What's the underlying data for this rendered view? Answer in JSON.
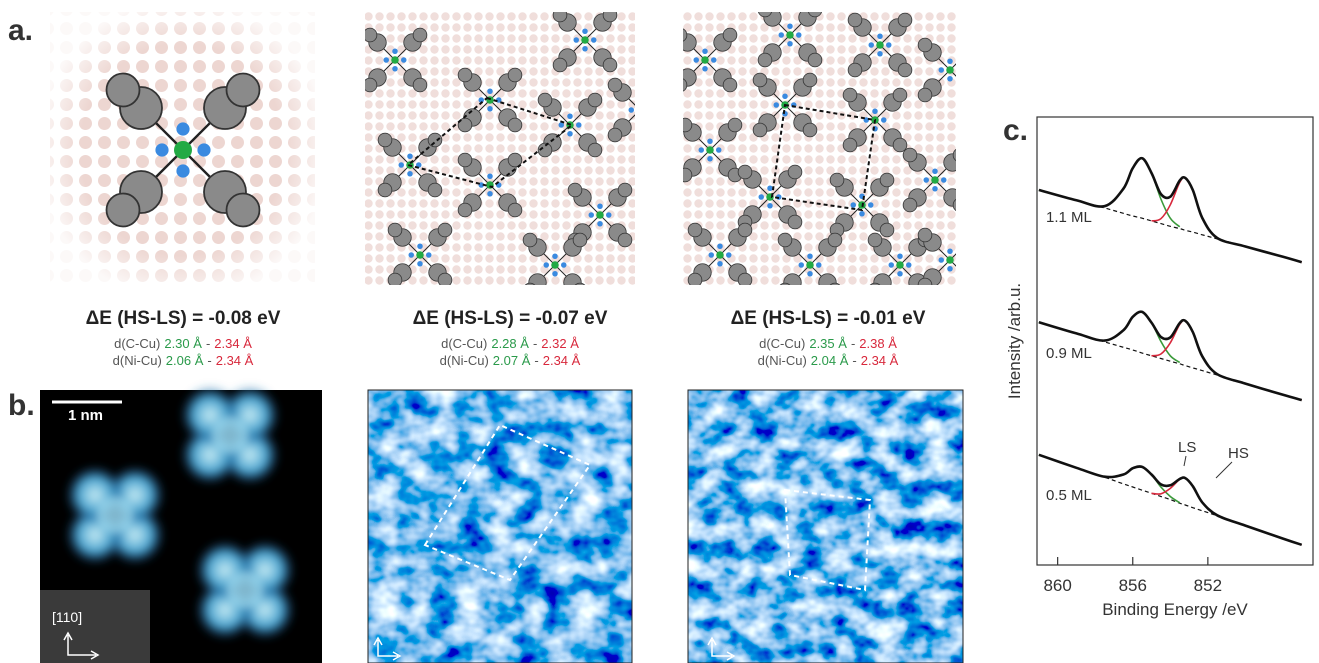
{
  "panel_labels": [
    "a.",
    "b.",
    "c."
  ],
  "distance_separator": "-",
  "panels": [
    {
      "energy": "ΔE (HS-LS) = -0.08 eV",
      "distances": [
        {
          "label": "d(C-Cu)",
          "hs": "2.30 Å",
          "ls": "2.34 Å"
        },
        {
          "label": "d(Ni-Cu)",
          "hs": "2.06 Å",
          "ls": "2.34 Å"
        }
      ]
    },
    {
      "energy": "ΔE (HS-LS) = -0.07 eV",
      "distances": [
        {
          "label": "d(C-Cu)",
          "hs": "2.28 Å",
          "ls": "2.32 Å"
        },
        {
          "label": "d(Ni-Cu)",
          "hs": "2.07 Å",
          "ls": "2.34 Å"
        }
      ]
    },
    {
      "energy": "ΔE (HS-LS) = -0.01 eV",
      "distances": [
        {
          "label": "d(C-Cu)",
          "hs": "2.35 Å",
          "ls": "2.38 Å"
        },
        {
          "label": "d(Ni-Cu)",
          "hs": "2.04 Å",
          "ls": "2.34 Å"
        }
      ]
    }
  ],
  "stm": {
    "scale_bar": "1 nm",
    "direction": "[110]"
  },
  "chart_data": {
    "type": "line",
    "xlabel": "Binding Energy /eV",
    "ylabel": "Intensity /arb.u.",
    "xlim": [
      861.1,
      846.4
    ],
    "xticks": [
      860,
      856,
      852
    ],
    "ylim": [
      0,
      10
    ],
    "x": [
      861,
      859,
      857.5,
      856.5,
      856,
      855.5,
      855,
      854.5,
      854,
      853.5,
      853.2,
      852.8,
      852.3,
      851.5,
      850,
      848,
      847
    ],
    "colors": {
      "total": "#111111",
      "background": "#111111",
      "ls": "#3a9a3a",
      "hs": "#d8283c"
    },
    "annotations": [
      "LS",
      "HS"
    ],
    "spectra": [
      {
        "name": "1.1 ML",
        "total": [
          8.37,
          8.14,
          8.01,
          8.4,
          8.86,
          9.08,
          8.75,
          8.28,
          8.22,
          8.58,
          8.64,
          8.37,
          7.75,
          7.3,
          7.11,
          6.88,
          6.76
        ],
        "background": [
          8.37,
          8.14,
          7.97,
          7.85,
          7.79,
          7.74,
          7.68,
          7.62,
          7.56,
          7.51,
          7.47,
          7.43,
          7.37,
          7.28,
          7.11,
          6.88,
          6.76
        ],
        "ls": [
          0,
          0,
          0.04,
          0.55,
          1.07,
          1.34,
          1.07,
          0.55,
          0.18,
          0.04,
          null,
          null,
          null,
          null,
          null,
          null,
          null
        ],
        "hs": [
          null,
          null,
          null,
          null,
          null,
          null,
          0,
          0.11,
          0.48,
          1.03,
          1.17,
          0.94,
          0.38,
          0.02,
          0,
          0,
          0
        ]
      },
      {
        "name": "0.9 ML",
        "total": [
          5.42,
          5.17,
          5.01,
          5.24,
          5.54,
          5.65,
          5.41,
          5.09,
          5.08,
          5.4,
          5.45,
          5.2,
          4.66,
          4.26,
          4.05,
          3.8,
          3.68
        ],
        "background": [
          5.42,
          5.17,
          4.98,
          4.86,
          4.8,
          4.73,
          4.67,
          4.61,
          4.55,
          4.49,
          4.45,
          4.4,
          4.34,
          4.24,
          4.05,
          3.8,
          3.68
        ],
        "ls": [
          0,
          0,
          0.03,
          0.38,
          0.74,
          0.92,
          0.74,
          0.38,
          0.12,
          0.03,
          null,
          null,
          null,
          null,
          null,
          null,
          null
        ],
        "hs": [
          null,
          null,
          null,
          null,
          null,
          null,
          0,
          0.1,
          0.41,
          0.88,
          1.0,
          0.8,
          0.32,
          0.02,
          0,
          0,
          0
        ]
      },
      {
        "name": "0.5 ML",
        "total": [
          2.46,
          2.17,
          1.97,
          2.02,
          2.16,
          2.19,
          2.02,
          1.8,
          1.78,
          1.92,
          1.94,
          1.76,
          1.4,
          1.11,
          0.88,
          0.59,
          0.45
        ],
        "background": [
          2.46,
          2.17,
          1.96,
          1.81,
          1.74,
          1.67,
          1.6,
          1.53,
          1.46,
          1.38,
          1.34,
          1.28,
          1.21,
          1.1,
          0.88,
          0.59,
          0.45
        ],
        "ls": [
          0,
          0,
          0.01,
          0.21,
          0.42,
          0.52,
          0.42,
          0.21,
          0.07,
          0.01,
          null,
          null,
          null,
          null,
          null,
          null,
          null
        ],
        "hs": [
          null,
          null,
          null,
          null,
          null,
          null,
          0,
          0.06,
          0.25,
          0.53,
          0.6,
          0.48,
          0.19,
          0.01,
          0,
          0,
          0
        ]
      }
    ]
  }
}
